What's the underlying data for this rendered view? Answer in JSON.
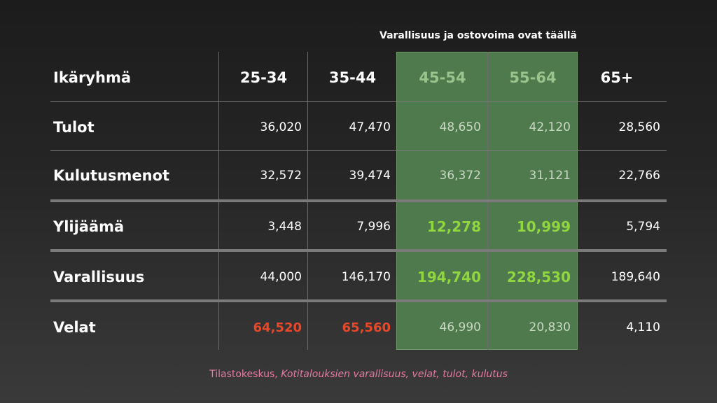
{
  "highlight_note": "Varallisuus ja ostovoima ovat täällä",
  "colors": {
    "highlight_band": "#4f7a4d",
    "green_header": "#9ac48c",
    "lime_value": "#8fd63f",
    "red_value": "#e8482a",
    "source_text": "#e77aa3"
  },
  "table": {
    "header": {
      "label": "Ikäryhmä",
      "columns": [
        "25-34",
        "35-44",
        "45-54",
        "55-64",
        "65+"
      ]
    },
    "rows": [
      {
        "label": "Tulot",
        "values": [
          "36,020",
          "47,470",
          "48,650",
          "42,120",
          "28,560"
        ]
      },
      {
        "label": "Kulutusmenot",
        "values": [
          "32,572",
          "39,474",
          "36,372",
          "31,121",
          "22,766"
        ]
      },
      {
        "label": "Ylijäämä",
        "values": [
          "3,448",
          "7,996",
          "12,278",
          "10,999",
          "5,794"
        ]
      },
      {
        "label": "Varallisuus",
        "values": [
          "44,000",
          "146,170",
          "194,740",
          "228,530",
          "189,640"
        ]
      },
      {
        "label": "Velat",
        "values": [
          "64,520",
          "65,560",
          "46,990",
          "20,830",
          "4,110"
        ]
      }
    ]
  },
  "source": {
    "prefix": "Tilastokeskus, ",
    "title": "Kotitalouksien varallisuus, velat, tulot, kulutus"
  }
}
